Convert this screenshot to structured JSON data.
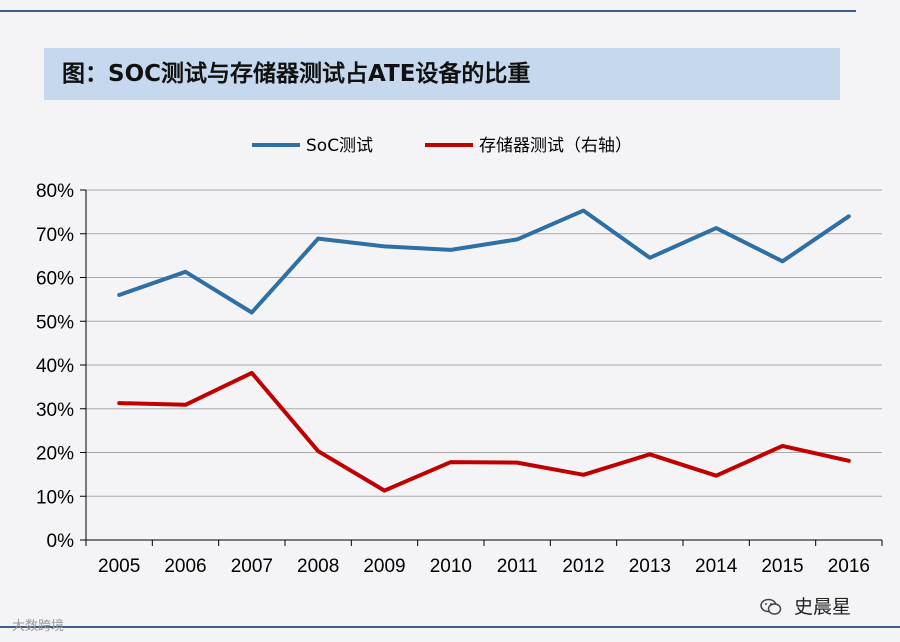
{
  "title": "图：SOC测试与存储器测试占ATE设备的比重",
  "watermarks": {
    "left": "大数跨境",
    "right": "史晨星"
  },
  "chart_data": {
    "type": "line",
    "categories": [
      "2005",
      "2006",
      "2007",
      "2008",
      "2009",
      "2010",
      "2011",
      "2012",
      "2013",
      "2014",
      "2015",
      "2016"
    ],
    "series": [
      {
        "name": "SoC测试",
        "values": [
          56,
          61.3,
          52,
          68.9,
          67.1,
          66.3,
          68.7,
          75.3,
          64.5,
          71.3,
          63.7,
          74
        ],
        "color": "#2e6fa6"
      },
      {
        "name": "存储器测试（右轴）",
        "values": [
          31.3,
          30.9,
          38.2,
          20.3,
          11.3,
          17.8,
          17.7,
          14.9,
          19.6,
          14.7,
          21.5,
          18.1
        ],
        "color": "#c00000"
      }
    ],
    "y_ticks": [
      "0%",
      "10%",
      "20%",
      "30%",
      "40%",
      "50%",
      "60%",
      "70%",
      "80%"
    ],
    "ylim": [
      0,
      80
    ],
    "grid": true,
    "legend_position": "top-center"
  }
}
